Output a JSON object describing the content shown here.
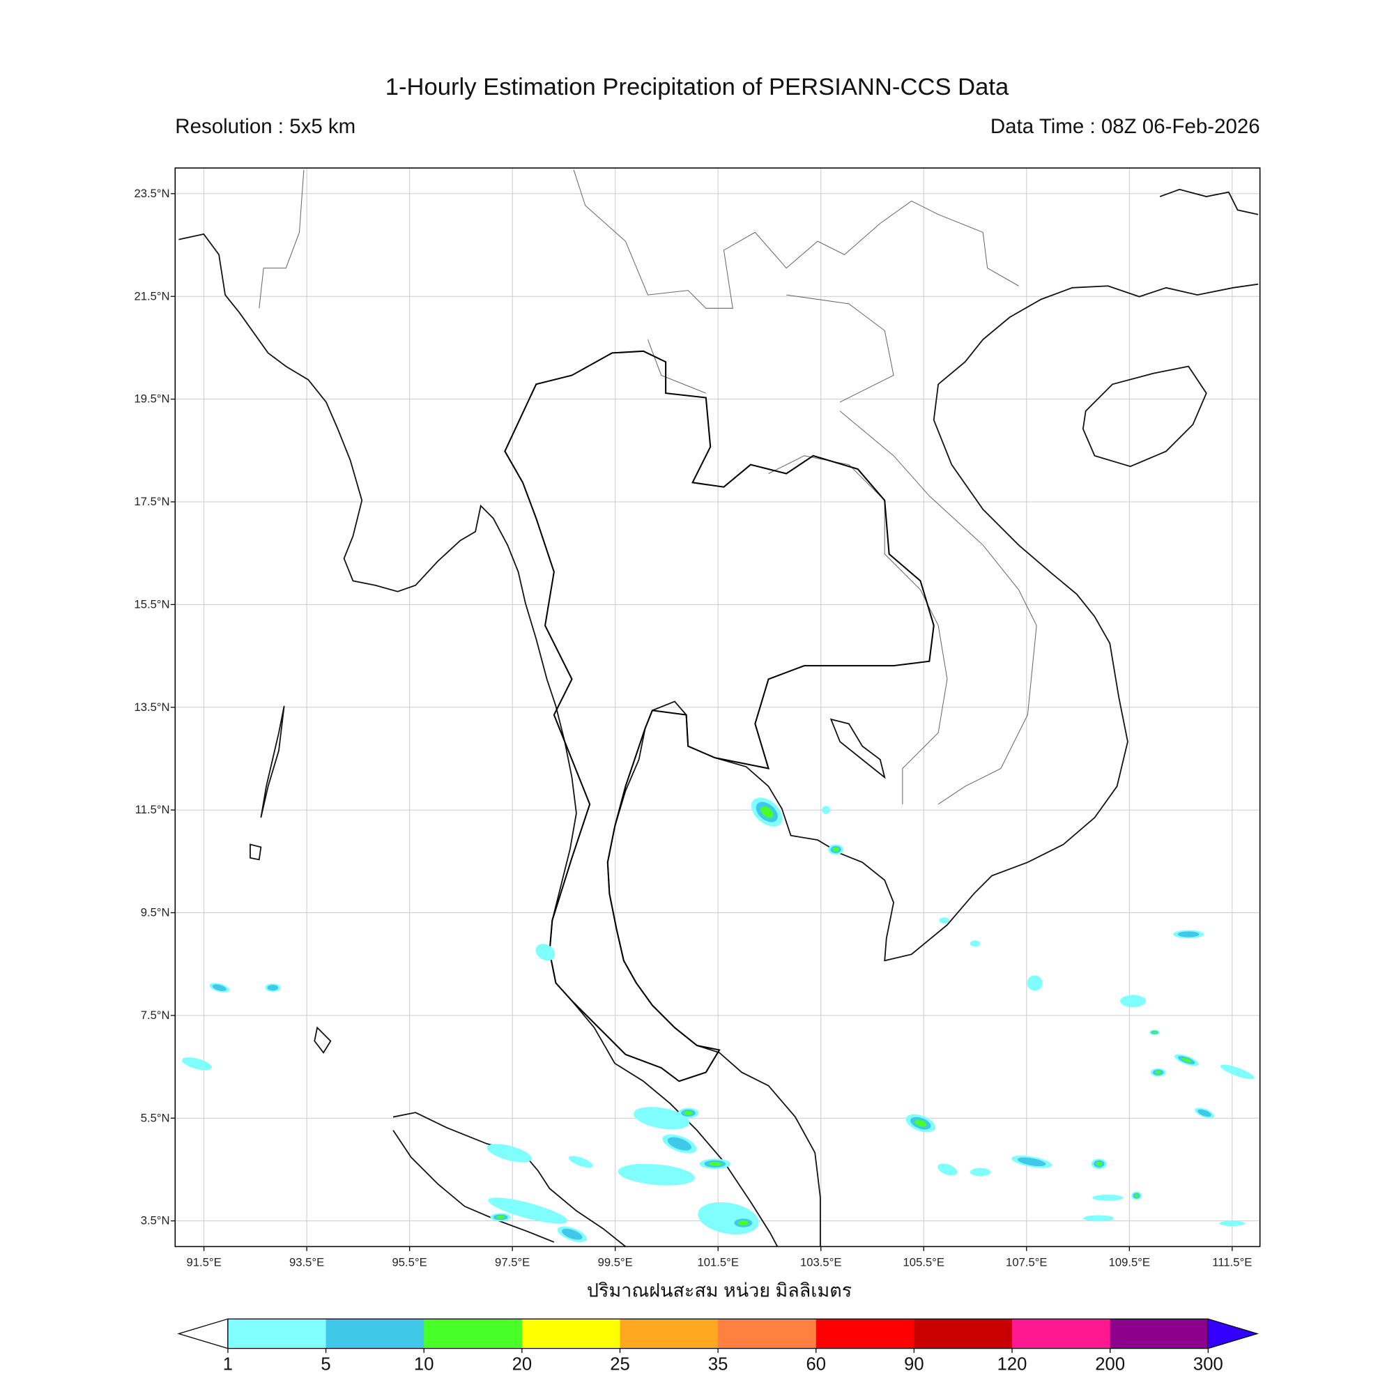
{
  "title": "1-Hourly Estimation Precipitation of PERSIANN-CCS Data",
  "resolution": "Resolution : 5x5 km",
  "data_time": "Data Time : 08Z 06-Feb-2026",
  "colorbar_label": "ปริมาณฝนสะสม หน่วย มิลลิเมตร",
  "map": {
    "extent": {
      "lon": [
        90.94,
        112.04
      ],
      "lat": [
        3.0,
        24.0
      ]
    },
    "lon_ticks": [
      "91.5°E",
      "93.5°E",
      "95.5°E",
      "97.5°E",
      "99.5°E",
      "101.5°E",
      "103.5°E",
      "105.5°E",
      "107.5°E",
      "109.5°E",
      "111.5°E"
    ],
    "lon_values": [
      91.5,
      93.5,
      95.5,
      97.5,
      99.5,
      101.5,
      103.5,
      105.5,
      107.5,
      109.5,
      111.5
    ],
    "lat_ticks": [
      "23.5°N",
      "21.5°N",
      "19.5°N",
      "17.5°N",
      "15.5°N",
      "13.5°N",
      "11.5°N",
      "9.5°N",
      "7.5°N",
      "5.5°N",
      "3.5°N"
    ],
    "lat_values": [
      23.5,
      21.5,
      19.5,
      17.5,
      15.5,
      13.5,
      11.5,
      9.5,
      7.5,
      5.5,
      3.5
    ],
    "grid": true
  },
  "colorbar": {
    "levels": [
      "1",
      "5",
      "10",
      "20",
      "25",
      "35",
      "60",
      "90",
      "120",
      "200",
      "300"
    ],
    "colors": [
      "#80ffff",
      "#40c8e8",
      "#48ff28",
      "#ffff00",
      "#ffa820",
      "#ff8040",
      "#ff0000",
      "#c80000",
      "#ff1890",
      "#8c008c"
    ],
    "under_color": "#ffffff",
    "over_color": "#3300ff"
  },
  "rain_cells": [
    {
      "lon": 102.45,
      "lat": 11.46,
      "rlon": 0.22,
      "rlat": 0.35,
      "rot": -50,
      "level": 2
    },
    {
      "lon": 103.79,
      "lat": 10.73,
      "rlon": 0.15,
      "rlat": 0.1,
      "rot": 0,
      "level": 2
    },
    {
      "lon": 100.4,
      "lat": 5.5,
      "rlon": 0.55,
      "rlat": 0.2,
      "rot": 10,
      "level": 0
    },
    {
      "lon": 100.92,
      "lat": 5.6,
      "rlon": 0.2,
      "rlat": 0.1,
      "rot": 0,
      "level": 2
    },
    {
      "lon": 100.75,
      "lat": 5.0,
      "rlon": 0.35,
      "rlat": 0.15,
      "rot": 20,
      "level": 1
    },
    {
      "lon": 100.3,
      "lat": 4.4,
      "rlon": 0.75,
      "rlat": 0.2,
      "rot": 5,
      "level": 0
    },
    {
      "lon": 101.44,
      "lat": 4.61,
      "rlon": 0.3,
      "rlat": 0.1,
      "rot": 0,
      "level": 2
    },
    {
      "lon": 101.7,
      "lat": 3.55,
      "rlon": 0.6,
      "rlat": 0.3,
      "rot": 10,
      "level": 0
    },
    {
      "lon": 101.99,
      "lat": 3.46,
      "rlon": 0.25,
      "rlat": 0.12,
      "rot": 0,
      "level": 2
    },
    {
      "lon": 97.44,
      "lat": 4.82,
      "rlon": 0.45,
      "rlat": 0.14,
      "rot": 15,
      "level": 0
    },
    {
      "lon": 97.8,
      "lat": 3.7,
      "rlon": 0.8,
      "rlat": 0.15,
      "rot": 15,
      "level": 0
    },
    {
      "lon": 97.27,
      "lat": 3.57,
      "rlon": 0.2,
      "rlat": 0.08,
      "rot": 0,
      "level": 2
    },
    {
      "lon": 98.66,
      "lat": 3.24,
      "rlon": 0.3,
      "rlat": 0.12,
      "rot": 20,
      "level": 1
    },
    {
      "lon": 98.83,
      "lat": 4.65,
      "rlon": 0.25,
      "rlat": 0.08,
      "rot": 20,
      "level": 0
    },
    {
      "lon": 105.44,
      "lat": 5.4,
      "rlon": 0.3,
      "rlat": 0.15,
      "rot": 20,
      "level": 2
    },
    {
      "lon": 105.96,
      "lat": 4.5,
      "rlon": 0.2,
      "rlat": 0.1,
      "rot": 20,
      "level": 0
    },
    {
      "lon": 106.6,
      "lat": 4.45,
      "rlon": 0.2,
      "rlat": 0.08,
      "rot": 0,
      "level": 0
    },
    {
      "lon": 107.6,
      "lat": 4.65,
      "rlon": 0.4,
      "rlat": 0.1,
      "rot": 10,
      "level": 1
    },
    {
      "lon": 108.91,
      "lat": 4.61,
      "rlon": 0.15,
      "rlat": 0.1,
      "rot": 0,
      "level": 2
    },
    {
      "lon": 109.08,
      "lat": 3.95,
      "rlon": 0.3,
      "rlat": 0.06,
      "rot": 0,
      "level": 0
    },
    {
      "lon": 109.64,
      "lat": 3.99,
      "rlon": 0.1,
      "rlat": 0.08,
      "rot": 0,
      "level": 2
    },
    {
      "lon": 108.9,
      "lat": 3.55,
      "rlon": 0.3,
      "rlat": 0.06,
      "rot": 0,
      "level": 0
    },
    {
      "lon": 109.57,
      "lat": 7.78,
      "rlon": 0.25,
      "rlat": 0.12,
      "rot": 0,
      "level": 0
    },
    {
      "lon": 110.61,
      "lat": 6.63,
      "rlon": 0.25,
      "rlat": 0.08,
      "rot": 20,
      "level": 2
    },
    {
      "lon": 110.06,
      "lat": 6.39,
      "rlon": 0.15,
      "rlat": 0.08,
      "rot": 0,
      "level": 2
    },
    {
      "lon": 109.99,
      "lat": 7.17,
      "rlon": 0.1,
      "rlat": 0.05,
      "rot": 0,
      "level": 2
    },
    {
      "lon": 110.96,
      "lat": 5.6,
      "rlon": 0.2,
      "rlat": 0.08,
      "rot": 20,
      "level": 1
    },
    {
      "lon": 111.6,
      "lat": 6.4,
      "rlon": 0.35,
      "rlat": 0.08,
      "rot": 20,
      "level": 0
    },
    {
      "lon": 111.5,
      "lat": 3.45,
      "rlon": 0.25,
      "rlat": 0.05,
      "rot": 0,
      "level": 0
    },
    {
      "lon": 107.66,
      "lat": 8.13,
      "rlon": 0.15,
      "rlat": 0.15,
      "rot": 0,
      "level": 0
    },
    {
      "lon": 110.65,
      "lat": 9.08,
      "rlon": 0.3,
      "rlat": 0.08,
      "rot": 0,
      "level": 1
    },
    {
      "lon": 91.36,
      "lat": 6.56,
      "rlon": 0.3,
      "rlat": 0.1,
      "rot": 15,
      "level": 0
    },
    {
      "lon": 91.8,
      "lat": 8.04,
      "rlon": 0.2,
      "rlat": 0.08,
      "rot": 15,
      "level": 1
    },
    {
      "lon": 92.84,
      "lat": 8.04,
      "rlon": 0.15,
      "rlat": 0.08,
      "rot": 0,
      "level": 1
    },
    {
      "lon": 98.14,
      "lat": 8.73,
      "rlon": 0.2,
      "rlat": 0.15,
      "rot": 30,
      "level": 0
    },
    {
      "lon": 106.5,
      "lat": 8.9,
      "rlon": 0.1,
      "rlat": 0.06,
      "rot": 0,
      "level": 0
    },
    {
      "lon": 105.9,
      "lat": 9.35,
      "rlon": 0.1,
      "rlat": 0.06,
      "rot": 0,
      "level": 0
    },
    {
      "lon": 103.6,
      "lat": 11.5,
      "rlon": 0.08,
      "rlat": 0.08,
      "rot": 0,
      "level": 0
    }
  ]
}
